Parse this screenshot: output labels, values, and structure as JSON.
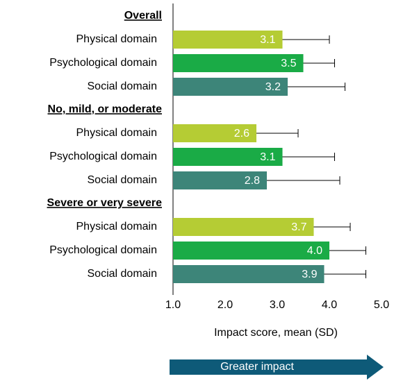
{
  "chart_data": {
    "type": "bar",
    "orientation": "horizontal",
    "categories": [
      "Overall",
      "No, mild, or moderate",
      "Severe or very severe"
    ],
    "series": [
      {
        "name": "Physical domain",
        "color": "#b5cc34",
        "values": [
          3.1,
          2.6,
          3.7
        ],
        "errors": [
          0.9,
          0.8,
          0.7
        ],
        "value_labels": [
          "3.1",
          "2.6",
          "3.7"
        ]
      },
      {
        "name": "Psychological domain",
        "color": "#1aab46",
        "values": [
          3.5,
          3.1,
          4.0
        ],
        "errors": [
          0.6,
          1.0,
          0.7
        ],
        "value_labels": [
          "3.5",
          "3.1",
          "4.0"
        ]
      },
      {
        "name": "Social domain",
        "color": "#3d8579",
        "values": [
          3.2,
          2.8,
          3.9
        ],
        "errors": [
          1.1,
          1.4,
          0.8
        ],
        "value_labels": [
          "3.2",
          "2.8",
          "3.9"
        ]
      }
    ],
    "xlim": [
      1,
      5
    ],
    "xticks": [
      {
        "value": 1,
        "label": "1.0"
      },
      {
        "value": 2,
        "label": "2.0"
      },
      {
        "value": 3,
        "label": "3.0"
      },
      {
        "value": 4,
        "label": "4.0"
      },
      {
        "value": 5,
        "label": "5.0"
      }
    ],
    "xlabel": "Impact score, mean (SD)",
    "annotation": "Greater impact"
  }
}
